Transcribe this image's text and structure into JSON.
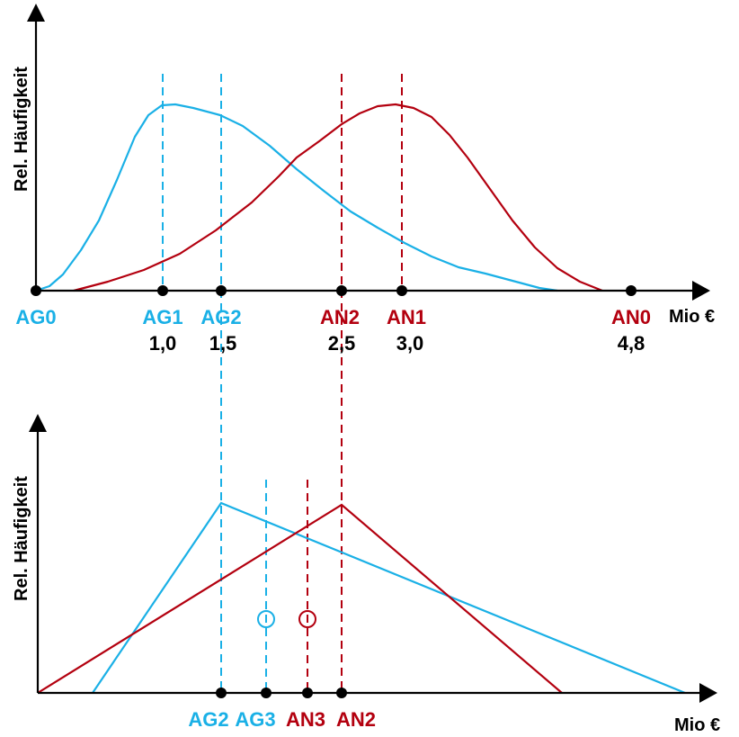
{
  "colors": {
    "ag": "#1ab0e6",
    "an": "#b3000f",
    "axis": "#000000"
  },
  "top_panel": {
    "ylabel": "Rel. Häufigkeit",
    "xlabel": "Mio €",
    "markers": [
      {
        "id": "AG0",
        "label": "AG0",
        "value": "",
        "group": "ag"
      },
      {
        "id": "AG1",
        "label": "AG1",
        "value": "1,0",
        "group": "ag"
      },
      {
        "id": "AG2",
        "label": "AG2",
        "value": "1,5",
        "group": "ag"
      },
      {
        "id": "AN2",
        "label": "AN2",
        "value": "2,5",
        "group": "an"
      },
      {
        "id": "AN1",
        "label": "AN1",
        "value": "3,0",
        "group": "an"
      },
      {
        "id": "AN0",
        "label": "AN0",
        "value": "4,8",
        "group": "an"
      }
    ]
  },
  "bottom_panel": {
    "ylabel": "Rel. Häufigkeit",
    "xlabel": "Mio €",
    "markers": [
      {
        "id": "AG2",
        "label": "AG2",
        "group": "ag"
      },
      {
        "id": "AG3",
        "label": "AG3",
        "group": "ag"
      },
      {
        "id": "AN3",
        "label": "AN3",
        "group": "an"
      },
      {
        "id": "AN2",
        "label": "AN2",
        "group": "an"
      }
    ]
  }
}
